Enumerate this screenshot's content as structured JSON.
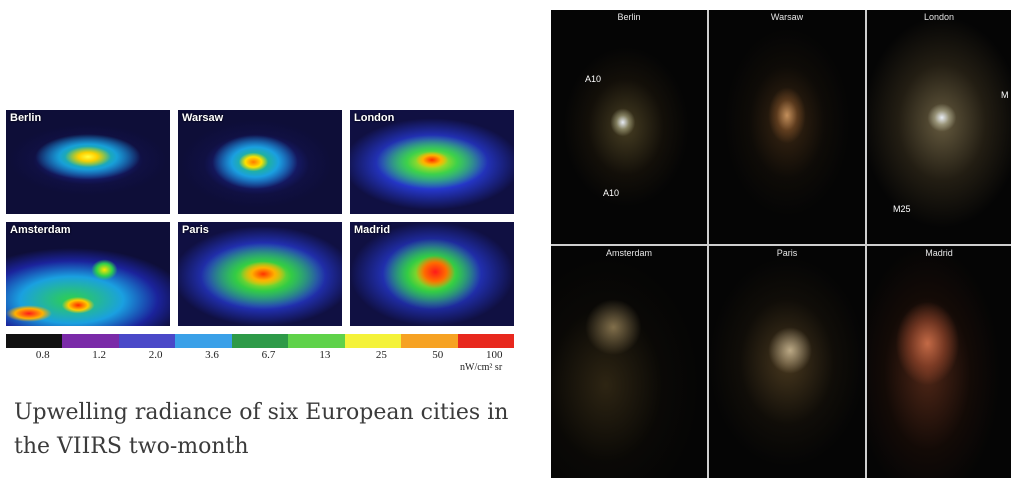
{
  "viirs_panel": {
    "cities": [
      "Berlin",
      "Warsaw",
      "London",
      "Amsterdam",
      "Paris",
      "Madrid"
    ],
    "colorbar": {
      "colors": [
        "#111111",
        "#7a2aa8",
        "#4a48c8",
        "#3aa0e8",
        "#2e9a48",
        "#5fd24a",
        "#f4f23a",
        "#f6a223",
        "#e8281e"
      ],
      "ticks": [
        "0.8",
        "1.2",
        "2.0",
        "3.6",
        "6.7",
        "13",
        "25",
        "50",
        "100"
      ],
      "unit": "nW/cm² sr"
    },
    "caption": "Upwelling radiance of six European cities in the VIIRS two-month"
  },
  "photo_panel": {
    "cities": [
      "Berlin",
      "Warsaw",
      "London",
      "Amsterdam",
      "Paris",
      "Madrid"
    ],
    "road_labels": {
      "berlin_a10_top": "A10",
      "berlin_a10_bottom": "A10",
      "london_m25": "M25",
      "london_m_edge": "M"
    }
  }
}
